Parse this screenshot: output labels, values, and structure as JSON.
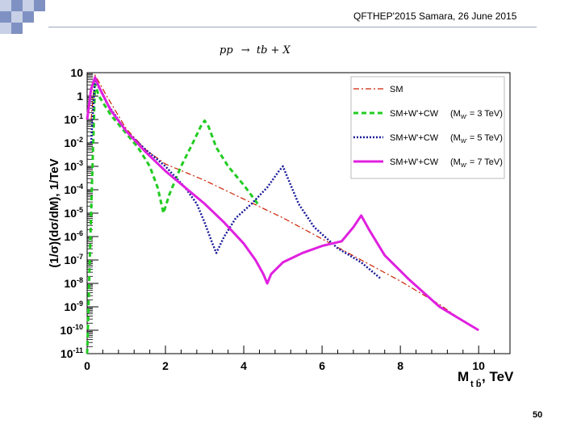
{
  "slide": {
    "header": "QFTHEP'2015 Samara,  26 June 2015",
    "page_number": "50",
    "colors": {
      "deco_light": "#c7d0e6",
      "deco_dark": "#7f91c2",
      "rule": "#9aa6b8"
    }
  },
  "chart_data": {
    "type": "line",
    "title_parts": {
      "lhs": "pp",
      "arrow": "→",
      "tb": "tb",
      "rest": "+ X"
    },
    "ylabel": "(1/σ)(dσ/dM), 1/TeV",
    "xlabel": {
      "main": "M",
      "sub": "t b̄",
      "rest": ", TeV"
    },
    "x_ticks": [
      "0",
      "2",
      "4",
      "6",
      "8",
      "10"
    ],
    "y_ticks": [
      {
        "exp": 1,
        "label": "10",
        "sup": ""
      },
      {
        "exp": 0,
        "label": "1",
        "sup": ""
      },
      {
        "exp": -1,
        "label": "10",
        "sup": "-1"
      },
      {
        "exp": -2,
        "label": "10",
        "sup": "-2"
      },
      {
        "exp": -3,
        "label": "10",
        "sup": "-3"
      },
      {
        "exp": -4,
        "label": "10",
        "sup": "-4"
      },
      {
        "exp": -5,
        "label": "10",
        "sup": "-5"
      },
      {
        "exp": -6,
        "label": "10",
        "sup": "-6"
      },
      {
        "exp": -7,
        "label": "10",
        "sup": "-7"
      },
      {
        "exp": -8,
        "label": "10",
        "sup": "-8"
      },
      {
        "exp": -9,
        "label": "10",
        "sup": "-9"
      },
      {
        "exp": -10,
        "label": "10",
        "sup": "-10"
      },
      {
        "exp": -11,
        "label": "10",
        "sup": "-11"
      }
    ],
    "xlim": [
      0,
      10.8
    ],
    "ylim_log10": [
      -11,
      1
    ],
    "log_y": true,
    "grid": false,
    "legend_position": "top-right",
    "series": [
      {
        "name": "SM",
        "legend_parts": {
          "main": "SM",
          "mass_label": "",
          "mass_sub": "",
          "mass_value": ""
        },
        "color": "#cc2200",
        "style": "dashdot",
        "width": 1.2,
        "points": [
          [
            0.1,
            -1.0
          ],
          [
            0.2,
            0.9
          ],
          [
            0.5,
            0.0
          ],
          [
            1.0,
            -1.4
          ],
          [
            1.5,
            -2.3
          ],
          [
            2.0,
            -2.9
          ],
          [
            3.0,
            -3.6
          ],
          [
            4.0,
            -4.4
          ],
          [
            5.0,
            -5.2
          ],
          [
            6.0,
            -6.1
          ],
          [
            7.0,
            -7.0
          ],
          [
            8.0,
            -7.9
          ],
          [
            9.0,
            -8.9
          ],
          [
            9.6,
            -9.6
          ],
          [
            10.0,
            -10.0
          ]
        ]
      },
      {
        "name": "SM+W'+CW (M_W' = 3 TeV)",
        "legend_parts": {
          "main": "SM+W'+CW",
          "mass_label": "(M",
          "mass_sub": "W'",
          "mass_value": " = 3 TeV)"
        },
        "color": "#22cc22",
        "style": "dashed",
        "width": 3,
        "points": [
          [
            0.0,
            -11.0
          ],
          [
            0.1,
            -5.0
          ],
          [
            0.2,
            0.5
          ],
          [
            0.3,
            0.0
          ],
          [
            0.6,
            -0.8
          ],
          [
            1.0,
            -1.6
          ],
          [
            1.3,
            -2.2
          ],
          [
            1.6,
            -3.0
          ],
          [
            1.8,
            -3.9
          ],
          [
            1.95,
            -5.0
          ],
          [
            2.1,
            -4.2
          ],
          [
            2.4,
            -3.0
          ],
          [
            2.7,
            -2.0
          ],
          [
            2.9,
            -1.3
          ],
          [
            3.0,
            -1.05
          ],
          [
            3.1,
            -1.3
          ],
          [
            3.3,
            -2.2
          ],
          [
            3.6,
            -3.0
          ],
          [
            4.0,
            -3.8
          ],
          [
            4.4,
            -4.7
          ]
        ]
      },
      {
        "name": "SM+W'+CW (M_W' = 5 TeV)",
        "legend_parts": {
          "main": "SM+W'+CW",
          "mass_label": "(M",
          "mass_sub": "W'",
          "mass_value": " = 5 TeV)"
        },
        "color": "#1a1a99",
        "style": "dotted",
        "width": 2.5,
        "points": [
          [
            0.1,
            -2.0
          ],
          [
            0.2,
            0.7
          ],
          [
            0.5,
            -0.3
          ],
          [
            1.0,
            -1.5
          ],
          [
            1.5,
            -2.3
          ],
          [
            2.0,
            -3.0
          ],
          [
            2.5,
            -3.9
          ],
          [
            2.8,
            -4.6
          ],
          [
            3.0,
            -5.4
          ],
          [
            3.2,
            -6.3
          ],
          [
            3.3,
            -6.7
          ],
          [
            3.5,
            -6.0
          ],
          [
            3.8,
            -5.2
          ],
          [
            4.2,
            -4.6
          ],
          [
            4.6,
            -3.9
          ],
          [
            4.9,
            -3.2
          ],
          [
            5.0,
            -3.0
          ],
          [
            5.1,
            -3.4
          ],
          [
            5.4,
            -4.6
          ],
          [
            5.8,
            -5.6
          ],
          [
            6.4,
            -6.5
          ],
          [
            7.0,
            -7.1
          ],
          [
            7.5,
            -7.8
          ]
        ]
      },
      {
        "name": "SM+W'+CW (M_W' = 7 TeV)",
        "legend_parts": {
          "main": "SM+W'+CW",
          "mass_label": "(M",
          "mass_sub": "W'",
          "mass_value": " = 7 TeV)"
        },
        "color": "#e020e0",
        "style": "solid",
        "width": 3,
        "points": [
          [
            0.0,
            -1.0
          ],
          [
            0.1,
            0.3
          ],
          [
            0.2,
            0.8
          ],
          [
            0.3,
            0.4
          ],
          [
            0.6,
            -0.6
          ],
          [
            1.0,
            -1.5
          ],
          [
            1.5,
            -2.4
          ],
          [
            2.0,
            -3.2
          ],
          [
            2.5,
            -3.9
          ],
          [
            3.0,
            -4.6
          ],
          [
            3.5,
            -5.4
          ],
          [
            4.0,
            -6.3
          ],
          [
            4.3,
            -7.0
          ],
          [
            4.5,
            -7.6
          ],
          [
            4.6,
            -8.0
          ],
          [
            4.7,
            -7.6
          ],
          [
            5.0,
            -7.1
          ],
          [
            5.5,
            -6.7
          ],
          [
            6.0,
            -6.4
          ],
          [
            6.5,
            -6.2
          ],
          [
            6.8,
            -5.6
          ],
          [
            7.0,
            -5.1
          ],
          [
            7.2,
            -5.7
          ],
          [
            7.6,
            -6.8
          ],
          [
            8.2,
            -7.8
          ],
          [
            9.0,
            -9.0
          ],
          [
            10.0,
            -10.0
          ]
        ]
      }
    ]
  }
}
